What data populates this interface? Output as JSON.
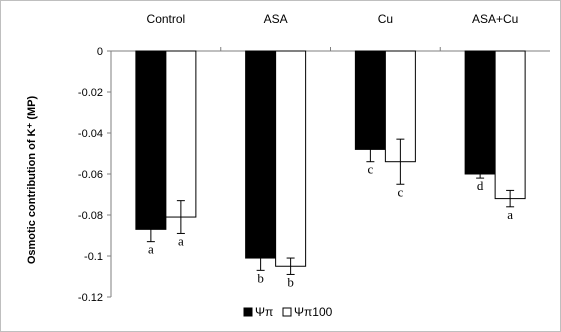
{
  "chart_data": {
    "type": "bar",
    "categories": [
      "Control",
      "ASA",
      "Cu",
      "ASA+Cu"
    ],
    "category_axis_position": "top",
    "ylabel": "Osmotic contribution of K⁺ (MP)",
    "ylim": [
      -0.12,
      0
    ],
    "yticks": [
      0,
      -0.02,
      -0.04,
      -0.06,
      -0.08,
      -0.1,
      -0.12
    ],
    "ytick_labels": [
      "0",
      "-0.02",
      "-0.04",
      "-0.06",
      "-0.08",
      "-0.1",
      "-0.12"
    ],
    "series": [
      {
        "name": "Ψπ",
        "color": "#000000",
        "values": [
          -0.087,
          -0.101,
          -0.048,
          -0.06
        ],
        "errors": [
          0.006,
          0.006,
          0.006,
          0.002
        ],
        "significance": [
          "a",
          "b",
          "c",
          "d"
        ]
      },
      {
        "name": "Ψπ100",
        "color": "#ffffff",
        "values": [
          -0.081,
          -0.105,
          -0.054,
          -0.072
        ],
        "errors": [
          0.008,
          0.004,
          0.011,
          0.004
        ],
        "significance": [
          "a",
          "b",
          "c",
          "a"
        ]
      }
    ],
    "legend_position": "bottom"
  }
}
